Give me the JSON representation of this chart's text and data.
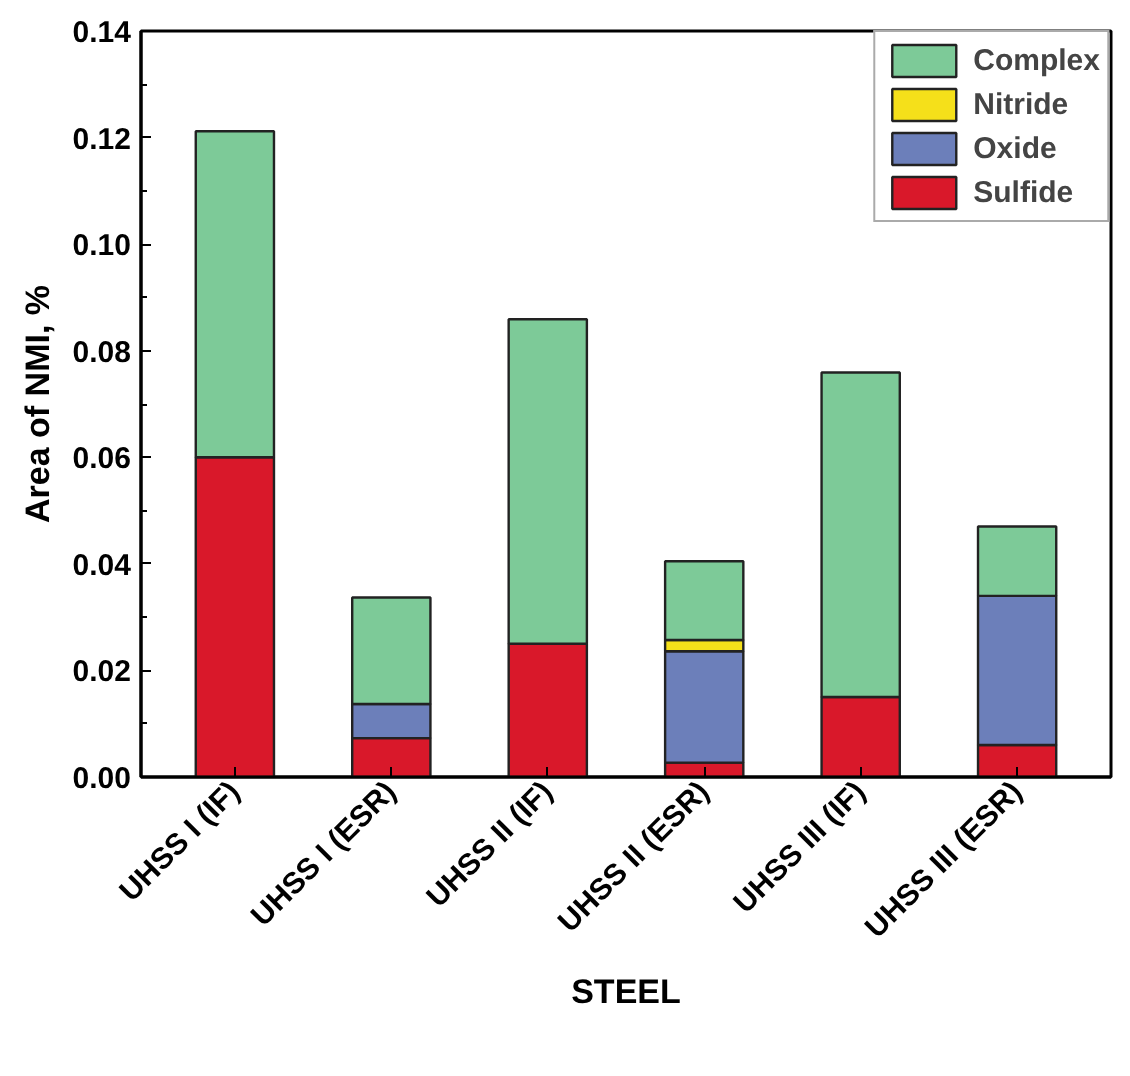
{
  "chart_data": {
    "type": "bar",
    "stacked": true,
    "xlabel": "STEEL",
    "ylabel": "Area of NMI, %",
    "categories": [
      "UHSS I (IF)",
      "UHSS I (ESR)",
      "UHSS II (IF)",
      "UHSS II (ESR)",
      "UHSS III (IF)",
      "UHSS III (ESR)"
    ],
    "series": [
      {
        "name": "Sulfide",
        "color": "#d9182a",
        "values": [
          0.06,
          0.0073,
          0.025,
          0.0027,
          0.015,
          0.006
        ]
      },
      {
        "name": "Oxide",
        "color": "#6c7fba",
        "values": [
          null,
          0.0064,
          null,
          0.0209,
          null,
          0.028
        ]
      },
      {
        "name": "Nitride",
        "color": "#f5e01a",
        "values": [
          null,
          null,
          null,
          0.0021,
          null,
          null
        ]
      },
      {
        "name": "Complex",
        "color": "#7dca98",
        "values": [
          0.0612,
          0.02,
          0.0609,
          0.0148,
          0.0609,
          0.013
        ]
      }
    ],
    "ylim": [
      0,
      0.14
    ],
    "yticks": [
      {
        "value": 0,
        "label": "0.00"
      },
      {
        "value": 0.02,
        "label": "0.02"
      },
      {
        "value": 0.04,
        "label": "0.04"
      },
      {
        "value": 0.06,
        "label": "0.06"
      },
      {
        "value": 0.08,
        "label": "0.08"
      },
      {
        "value": 0.1,
        "label": "0.10"
      },
      {
        "value": 0.12,
        "label": "0.12"
      },
      {
        "value": 0.14,
        "label": "0.14"
      }
    ],
    "grid": false,
    "legend": "top right"
  }
}
